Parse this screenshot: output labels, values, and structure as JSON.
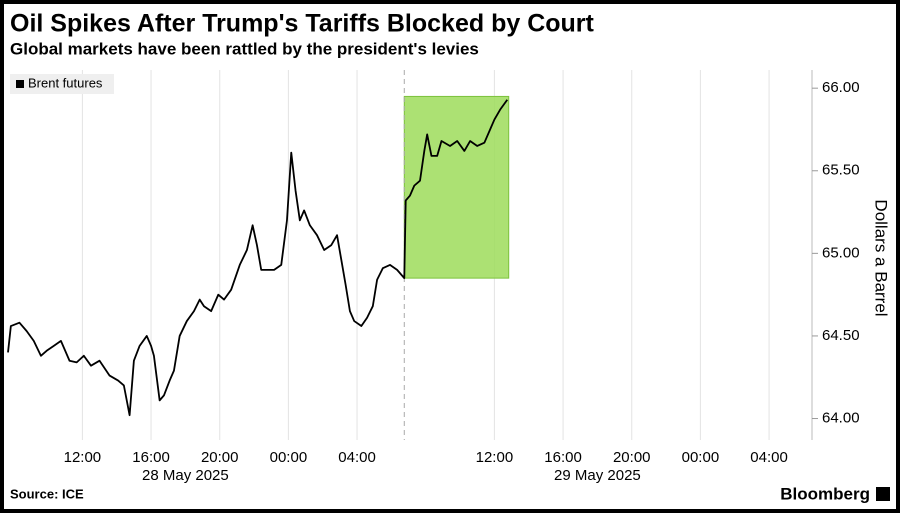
{
  "chart_data": {
    "type": "line",
    "title": "Oil Spikes After Trump's Tariffs Blocked by Court",
    "subtitle": "Global markets have been rattled by the president's levies",
    "ylabel": "Dollars a Barrel",
    "source": "Source: ICE",
    "brand": "Bloomberg",
    "x": [
      "2025-05-28T07:40",
      "2025-05-28T07:50",
      "2025-05-28T08:20",
      "2025-05-28T08:45",
      "2025-05-28T09:10",
      "2025-05-28T09:35",
      "2025-05-28T09:55",
      "2025-05-28T10:20",
      "2025-05-28T10:45",
      "2025-05-28T11:15",
      "2025-05-28T11:40",
      "2025-05-28T12:05",
      "2025-05-28T12:30",
      "2025-05-28T13:00",
      "2025-05-28T13:35",
      "2025-05-28T14:05",
      "2025-05-28T14:25",
      "2025-05-28T14:45",
      "2025-05-28T15:00",
      "2025-05-28T15:20",
      "2025-05-28T15:45",
      "2025-05-28T16:00",
      "2025-05-28T16:10",
      "2025-05-28T16:30",
      "2025-05-28T16:45",
      "2025-05-28T17:05",
      "2025-05-28T17:20",
      "2025-05-28T17:40",
      "2025-05-28T18:05",
      "2025-05-28T18:30",
      "2025-05-28T18:50",
      "2025-05-28T19:05",
      "2025-05-28T19:30",
      "2025-05-28T19:55",
      "2025-05-28T20:15",
      "2025-05-28T20:40",
      "2025-05-28T21:10",
      "2025-05-28T21:35",
      "2025-05-28T21:55",
      "2025-05-28T22:10",
      "2025-05-28T22:25",
      "2025-05-28T22:45",
      "2025-05-28T23:10",
      "2025-05-28T23:35",
      "2025-05-28T23:55",
      "2025-05-29T00:10",
      "2025-05-29T00:25",
      "2025-05-29T00:40",
      "2025-05-29T00:55",
      "2025-05-29T01:15",
      "2025-05-29T01:40",
      "2025-05-29T02:05",
      "2025-05-29T02:30",
      "2025-05-29T02:50",
      "2025-05-29T03:05",
      "2025-05-29T03:20",
      "2025-05-29T03:35",
      "2025-05-29T03:50",
      "2025-05-29T04:15",
      "2025-05-29T04:35",
      "2025-05-29T04:55",
      "2025-05-29T05:10",
      "2025-05-29T05:30",
      "2025-05-29T05:55",
      "2025-05-29T06:20",
      "2025-05-29T06:45",
      "2025-05-29T06:50",
      "2025-05-29T07:05",
      "2025-05-29T07:20",
      "2025-05-29T07:40",
      "2025-05-29T07:55",
      "2025-05-29T08:05",
      "2025-05-29T08:20",
      "2025-05-29T08:40",
      "2025-05-29T08:55",
      "2025-05-29T09:25",
      "2025-05-29T09:50",
      "2025-05-29T10:15",
      "2025-05-29T10:35",
      "2025-05-29T11:00",
      "2025-05-29T11:25",
      "2025-05-29T11:45",
      "2025-05-29T12:00",
      "2025-05-29T12:20",
      "2025-05-29T12:45"
    ],
    "series": [
      {
        "name": "Brent futures",
        "color": "#000000",
        "values": [
          64.4,
          64.56,
          64.58,
          64.53,
          64.47,
          64.38,
          64.41,
          64.44,
          64.47,
          64.35,
          64.34,
          64.38,
          64.32,
          64.35,
          64.26,
          64.23,
          64.2,
          64.02,
          64.35,
          64.44,
          64.5,
          64.44,
          64.38,
          64.11,
          64.14,
          64.23,
          64.29,
          64.5,
          64.59,
          64.65,
          64.72,
          64.68,
          64.65,
          64.75,
          64.72,
          64.78,
          64.93,
          65.02,
          65.17,
          65.05,
          64.9,
          64.9,
          64.9,
          64.93,
          65.2,
          65.61,
          65.38,
          65.2,
          65.26,
          65.17,
          65.11,
          65.02,
          65.05,
          65.11,
          64.96,
          64.81,
          64.65,
          64.59,
          64.56,
          64.61,
          64.68,
          64.84,
          64.91,
          64.93,
          64.9,
          64.85,
          65.32,
          65.35,
          65.41,
          65.44,
          65.62,
          65.72,
          65.59,
          65.59,
          65.68,
          65.65,
          65.68,
          65.62,
          65.68,
          65.65,
          65.67,
          65.75,
          65.81,
          65.87,
          65.93
        ]
      }
    ],
    "xlim": [
      "2025-05-28T07:40",
      "2025-05-30T06:30"
    ],
    "xticks": [
      {
        "value": "2025-05-28T12:00",
        "label": "12:00"
      },
      {
        "value": "2025-05-28T16:00",
        "label": "16:00"
      },
      {
        "value": "2025-05-28T20:00",
        "label": "20:00"
      },
      {
        "value": "2025-05-29T00:00",
        "label": "00:00"
      },
      {
        "value": "2025-05-29T04:00",
        "label": "04:00"
      },
      {
        "value": "2025-05-29T12:00",
        "label": "12:00"
      },
      {
        "value": "2025-05-29T16:00",
        "label": "16:00"
      },
      {
        "value": "2025-05-29T20:00",
        "label": "20:00"
      },
      {
        "value": "2025-05-30T00:00",
        "label": "00:00"
      },
      {
        "value": "2025-05-30T04:00",
        "label": "04:00"
      }
    ],
    "x_groups": [
      {
        "value": "2025-05-28T18:00",
        "label": "28 May 2025"
      },
      {
        "value": "2025-05-29T18:00",
        "label": "29 May 2025"
      }
    ],
    "ylim": [
      63.87,
      66.11
    ],
    "yticks": [
      {
        "value": 64,
        "label": "64.00"
      },
      {
        "value": 64.5,
        "label": "64.50"
      },
      {
        "value": 65,
        "label": "65.00"
      },
      {
        "value": 65.5,
        "label": "65.50"
      },
      {
        "value": 66,
        "label": "66.00"
      }
    ],
    "session_break": "2025-05-29T06:45",
    "highlight": {
      "x": [
        "2025-05-29T06:45",
        "2025-05-29T12:50"
      ],
      "y": [
        64.85,
        65.95
      ],
      "color": "#9edc5a"
    },
    "grid": true,
    "legend": "top-left"
  }
}
